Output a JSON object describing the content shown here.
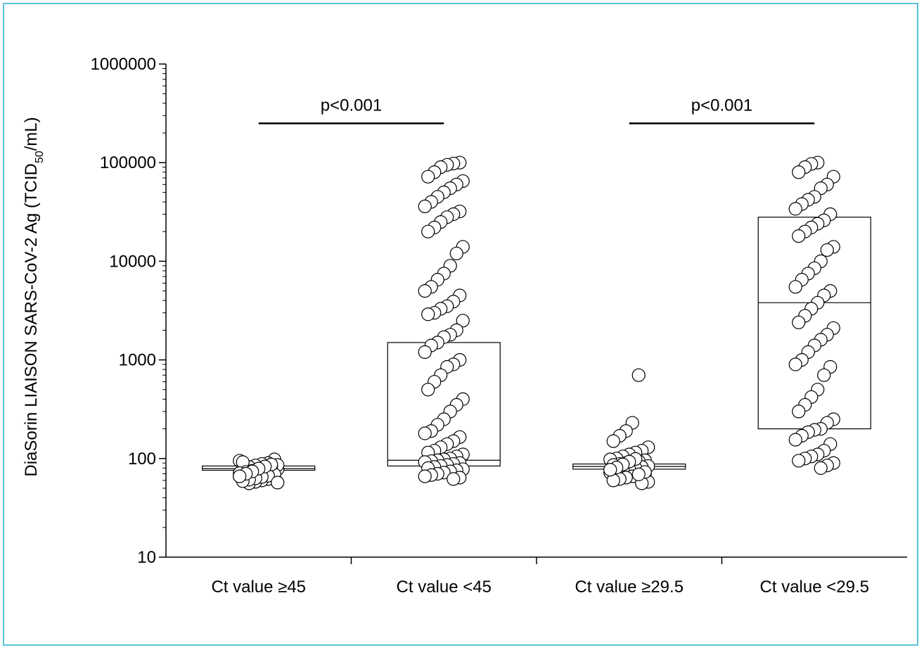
{
  "chart_data": {
    "type": "scatter",
    "ylabel_parts": {
      "pre": "DiaSorin LIAISON SARS-CoV-2 Ag (TCID",
      "sub": "50",
      "post": "/mL)"
    },
    "yscale": "log",
    "ylim": [
      10,
      1000000
    ],
    "yticks": [
      "10",
      "100",
      "1000",
      "10000",
      "100000",
      "1000000"
    ],
    "categories": [
      "Ct value ≥45",
      "Ct value <45",
      "Ct value ≥29.5",
      "Ct value <29.5"
    ],
    "boxes": [
      {
        "category": "Ct value ≥45",
        "q1": 76,
        "median": 79,
        "q3": 84
      },
      {
        "category": "Ct value <45",
        "q1": 84,
        "median": 96,
        "q3": 1500
      },
      {
        "category": "Ct value ≥29.5",
        "q1": 78,
        "median": 83,
        "q3": 88
      },
      {
        "category": "Ct value <29.5",
        "q1": 200,
        "median": 3800,
        "q3": 28000
      }
    ],
    "series": [
      {
        "category": "Ct value ≥45",
        "values": [
          95,
          98,
          90,
          88,
          85,
          82,
          80,
          78,
          76,
          74,
          72,
          70,
          68,
          66,
          64,
          62,
          60,
          58,
          56,
          92,
          86,
          84,
          80,
          77,
          75,
          73,
          71,
          69,
          67,
          65,
          63,
          61,
          59,
          57,
          87,
          83,
          79,
          74,
          70,
          66
        ]
      },
      {
        "category": "Ct value <45",
        "values": [
          100000,
          98000,
          95000,
          90000,
          80000,
          72000,
          65000,
          60000,
          55000,
          50000,
          45000,
          40000,
          36000,
          32000,
          30000,
          28000,
          25000,
          22000,
          20000,
          14000,
          12000,
          9000,
          7500,
          6500,
          5500,
          5000,
          4500,
          3900,
          3500,
          3300,
          3000,
          2900,
          2500,
          2000,
          1800,
          1700,
          1500,
          1400,
          1200,
          1000,
          900,
          850,
          700,
          600,
          500,
          400,
          350,
          300,
          250,
          220,
          190,
          180,
          165,
          150,
          140,
          130,
          120,
          115,
          110,
          105,
          100,
          98,
          96,
          94,
          92,
          90,
          88,
          86,
          84,
          82,
          80,
          78,
          76,
          74,
          72,
          70,
          68,
          66,
          64,
          62
        ]
      },
      {
        "category": "Ct value ≥29.5",
        "values": [
          700,
          230,
          190,
          170,
          150,
          130,
          120,
          115,
          110,
          105,
          100,
          98,
          96,
          94,
          92,
          90,
          88,
          86,
          84,
          82,
          80,
          78,
          76,
          74,
          72,
          70,
          68,
          66,
          64,
          62,
          60,
          58,
          56,
          99,
          93,
          87,
          81,
          77,
          73,
          69
        ]
      },
      {
        "category": "Ct value <29.5",
        "values": [
          100000,
          97000,
          90000,
          80000,
          72000,
          60000,
          55000,
          45000,
          42000,
          38000,
          34000,
          30000,
          26000,
          24000,
          22000,
          20000,
          18000,
          14000,
          13000,
          10000,
          8500,
          7500,
          6500,
          5500,
          5000,
          4500,
          3800,
          3300,
          2800,
          2400,
          2100,
          1800,
          1600,
          1400,
          1200,
          1000,
          900,
          850,
          700,
          500,
          420,
          350,
          300,
          250,
          230,
          200,
          195,
          185,
          170,
          155,
          140,
          120,
          110,
          105,
          100,
          95,
          90,
          85,
          80
        ]
      }
    ],
    "annotations": [
      {
        "text": "p<0.001",
        "from": 0,
        "to": 1,
        "y": 250000
      },
      {
        "text": "p<0.001",
        "from": 2,
        "to": 3,
        "y": 250000
      }
    ],
    "grid": false,
    "legend": "none"
  }
}
